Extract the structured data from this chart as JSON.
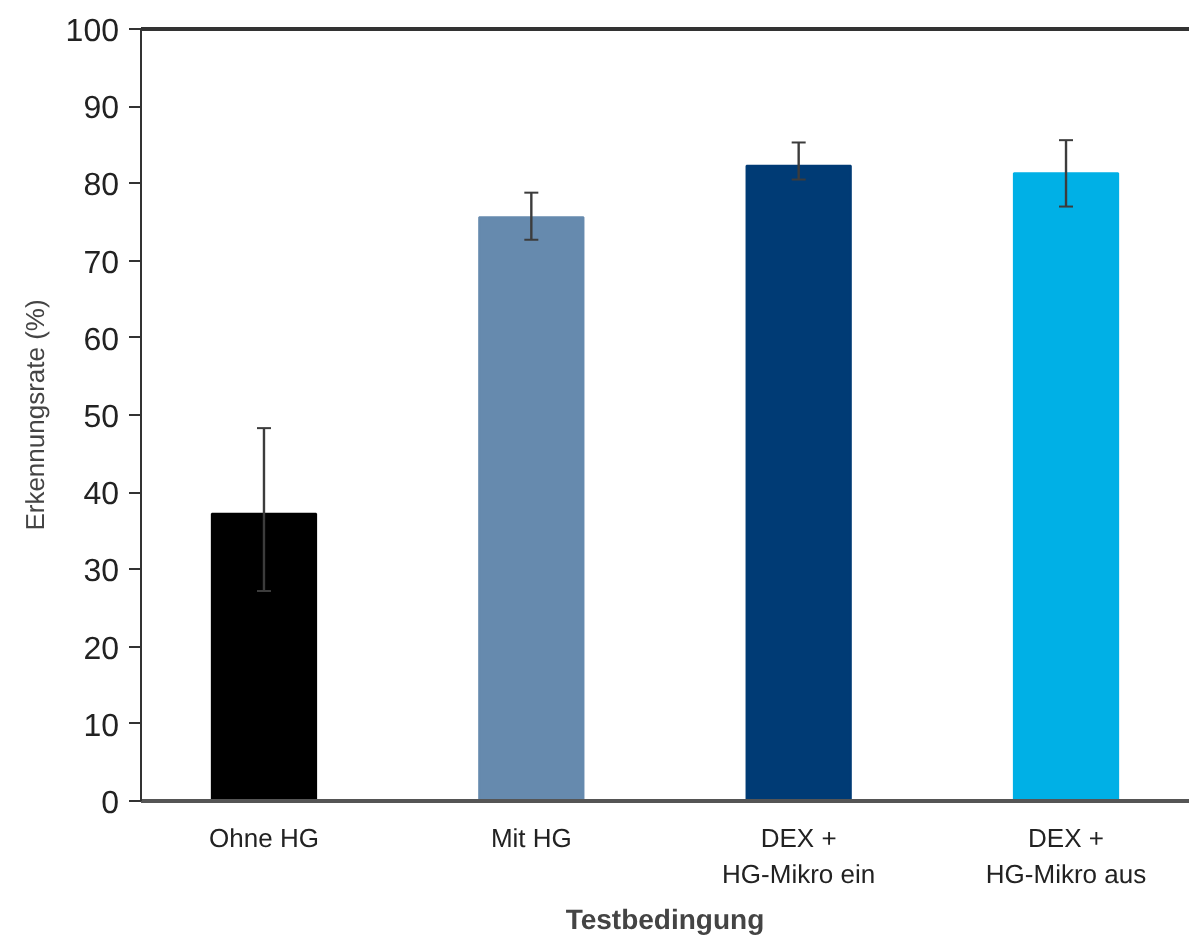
{
  "chart_data": {
    "type": "bar",
    "xlabel": "Testbedingung",
    "ylabel": "Erkennungsrate (%)",
    "categories": [
      "Ohne HG",
      "Mit HG",
      "DEX +\nHG-Mikro ein",
      "DEX +\nHG-Mikro aus"
    ],
    "values": [
      37.2,
      75.6,
      82.3,
      81.3
    ],
    "colors": [
      "#000000",
      "#668aae",
      "#003b75",
      "#00b0e6"
    ],
    "errors": [
      [
        27.2,
        48.3
      ],
      [
        72.7,
        78.8
      ],
      [
        80.5,
        85.3
      ],
      [
        77.0,
        85.6
      ]
    ],
    "ylim": [
      0,
      100
    ],
    "yticks": [
      0,
      10,
      20,
      30,
      40,
      50,
      60,
      70,
      80,
      90,
      100
    ],
    "grid": false
  }
}
